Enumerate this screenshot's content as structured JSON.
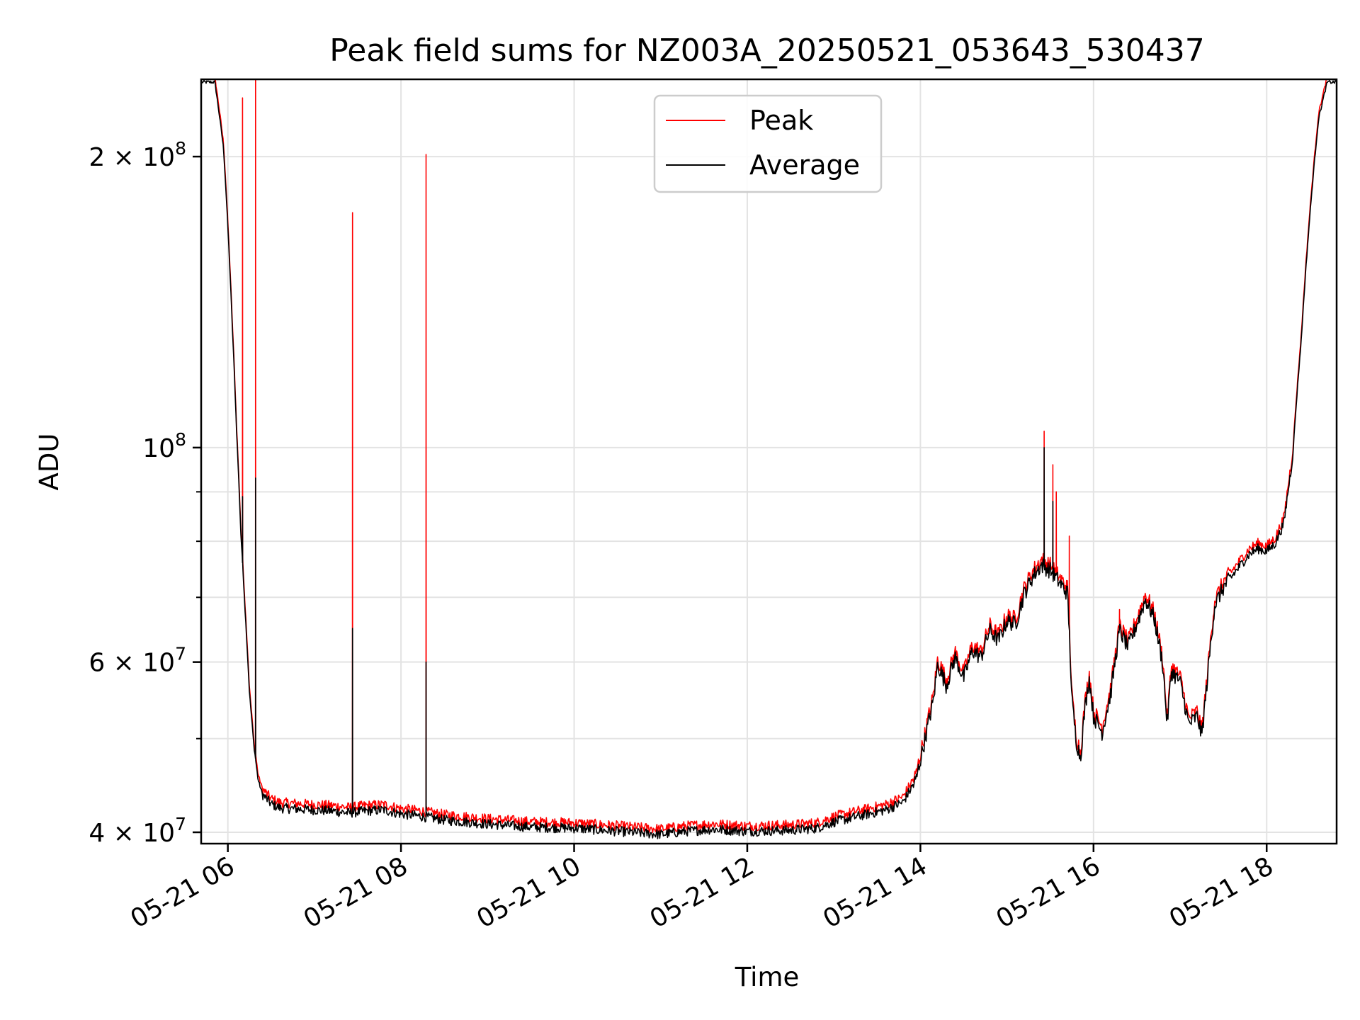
{
  "chart_data": {
    "type": "line",
    "title": "Peak field sums for NZ003A_20250521_053643_530437",
    "xlabel": "Time",
    "ylabel": "ADU",
    "yscale": "log",
    "grid": true,
    "legend_position": "top-center",
    "xlim": [
      5.7,
      18.8
    ],
    "ylim": [
      39000000,
      240000000
    ],
    "x_ticks": [
      {
        "value": 6,
        "label": "05-21 06"
      },
      {
        "value": 8,
        "label": "05-21 08"
      },
      {
        "value": 10,
        "label": "05-21 10"
      },
      {
        "value": 12,
        "label": "05-21 12"
      },
      {
        "value": 14,
        "label": "05-21 14"
      },
      {
        "value": 16,
        "label": "05-21 16"
      },
      {
        "value": 18,
        "label": "05-21 18"
      }
    ],
    "y_major_ticks": [
      {
        "value": 40000000,
        "mantissa": "4",
        "exponent": "7"
      },
      {
        "value": 60000000,
        "mantissa": "6",
        "exponent": "7"
      },
      {
        "value": 100000000,
        "mantissa": "",
        "exponent": "8"
      },
      {
        "value": 200000000,
        "mantissa": "2",
        "exponent": "8"
      }
    ],
    "y_times_sign": "×",
    "y_base": "10",
    "y_minor_ticks": [
      50000000,
      70000000,
      80000000,
      90000000
    ],
    "series": [
      {
        "name": "Peak",
        "color": "#ff0000",
        "spikes": [
          {
            "x": 6.17,
            "y": 230000000
          },
          {
            "x": 6.32,
            "y": 240000000
          },
          {
            "x": 7.44,
            "y": 175000000
          },
          {
            "x": 8.29,
            "y": 201000000
          },
          {
            "x": 15.43,
            "y": 104000000
          },
          {
            "x": 15.53,
            "y": 96000000
          },
          {
            "x": 15.57,
            "y": 90000000
          },
          {
            "x": 15.72,
            "y": 81000000
          },
          {
            "x": 16.3,
            "y": 68000000
          }
        ]
      },
      {
        "name": "Average",
        "color": "#000000",
        "spikes": [
          {
            "x": 6.17,
            "y": 89000000
          },
          {
            "x": 6.32,
            "y": 93000000
          },
          {
            "x": 7.44,
            "y": 65000000
          },
          {
            "x": 8.29,
            "y": 60000000
          },
          {
            "x": 15.43,
            "y": 100000000
          },
          {
            "x": 15.53,
            "y": 88000000
          }
        ]
      }
    ],
    "baseline": [
      [
        5.7,
        240000000
      ],
      [
        5.85,
        240000000
      ],
      [
        5.95,
        205000000
      ],
      [
        6.0,
        170000000
      ],
      [
        6.05,
        135000000
      ],
      [
        6.1,
        105000000
      ],
      [
        6.15,
        82000000
      ],
      [
        6.2,
        68000000
      ],
      [
        6.25,
        56000000
      ],
      [
        6.3,
        49500000
      ],
      [
        6.35,
        45500000
      ],
      [
        6.4,
        44000000
      ],
      [
        6.5,
        43000000
      ],
      [
        6.6,
        42600000
      ],
      [
        6.8,
        42500000
      ],
      [
        7.0,
        42400000
      ],
      [
        7.2,
        42300000
      ],
      [
        7.4,
        42100000
      ],
      [
        7.6,
        42300000
      ],
      [
        7.8,
        42400000
      ],
      [
        8.0,
        42000000
      ],
      [
        8.2,
        41800000
      ],
      [
        8.5,
        41400000
      ],
      [
        9.0,
        41000000
      ],
      [
        9.5,
        40700000
      ],
      [
        10.0,
        40600000
      ],
      [
        10.5,
        40300000
      ],
      [
        11.0,
        40000000
      ],
      [
        11.3,
        40300000
      ],
      [
        11.6,
        40500000
      ],
      [
        12.0,
        40300000
      ],
      [
        12.5,
        40400000
      ],
      [
        12.8,
        40600000
      ],
      [
        13.0,
        41200000
      ],
      [
        13.3,
        41800000
      ],
      [
        13.6,
        42400000
      ],
      [
        13.8,
        43200000
      ],
      [
        13.95,
        45500000
      ],
      [
        14.05,
        50000000
      ],
      [
        14.15,
        55000000
      ],
      [
        14.2,
        60000000
      ],
      [
        14.3,
        57000000
      ],
      [
        14.4,
        61000000
      ],
      [
        14.5,
        58000000
      ],
      [
        14.6,
        62000000
      ],
      [
        14.7,
        61000000
      ],
      [
        14.8,
        65000000
      ],
      [
        14.9,
        63500000
      ],
      [
        15.0,
        66500000
      ],
      [
        15.1,
        66000000
      ],
      [
        15.2,
        71000000
      ],
      [
        15.3,
        74000000
      ],
      [
        15.4,
        76000000
      ],
      [
        15.5,
        75000000
      ],
      [
        15.6,
        73000000
      ],
      [
        15.7,
        71000000
      ],
      [
        15.75,
        55000000
      ],
      [
        15.8,
        50000000
      ],
      [
        15.85,
        48000000
      ],
      [
        15.9,
        54000000
      ],
      [
        15.95,
        58000000
      ],
      [
        16.0,
        53000000
      ],
      [
        16.1,
        51000000
      ],
      [
        16.2,
        56000000
      ],
      [
        16.3,
        65000000
      ],
      [
        16.4,
        62500000
      ],
      [
        16.5,
        66000000
      ],
      [
        16.6,
        70000000
      ],
      [
        16.7,
        67000000
      ],
      [
        16.8,
        60000000
      ],
      [
        16.85,
        52000000
      ],
      [
        16.9,
        59000000
      ],
      [
        17.0,
        57500000
      ],
      [
        17.1,
        52000000
      ],
      [
        17.2,
        53000000
      ],
      [
        17.25,
        50500000
      ],
      [
        17.3,
        56000000
      ],
      [
        17.4,
        69000000
      ],
      [
        17.5,
        72000000
      ],
      [
        17.6,
        74000000
      ],
      [
        17.7,
        76000000
      ],
      [
        17.8,
        78000000
      ],
      [
        17.9,
        79000000
      ],
      [
        18.0,
        78500000
      ],
      [
        18.1,
        80000000
      ],
      [
        18.2,
        84000000
      ],
      [
        18.3,
        98000000
      ],
      [
        18.4,
        130000000
      ],
      [
        18.5,
        175000000
      ],
      [
        18.6,
        220000000
      ],
      [
        18.7,
        240000000
      ],
      [
        18.8,
        240000000
      ]
    ]
  }
}
